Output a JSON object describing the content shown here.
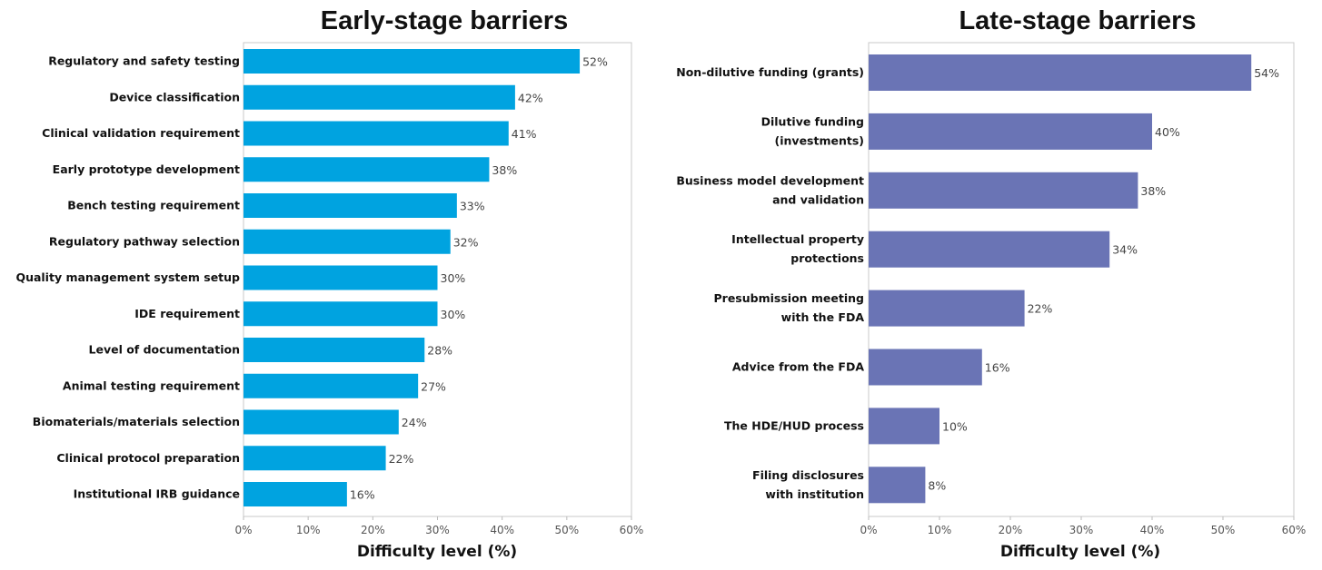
{
  "chart_data": [
    {
      "type": "bar",
      "orientation": "horizontal",
      "title": "Early-stage barriers",
      "xlabel": "Difficulty level (%)",
      "ylabel": "",
      "xlim": [
        0,
        60
      ],
      "ticks": [
        "0%",
        "10%",
        "20%",
        "30%",
        "40%",
        "50%",
        "60%"
      ],
      "grid": false,
      "color": "#00A3E0",
      "categories": [
        "Regulatory and safety testing",
        "Device classification",
        "Clinical validation requirement",
        "Early prototype development",
        "Bench testing requirement",
        "Regulatory pathway selection",
        "Quality management system setup",
        "IDE requirement",
        "Level of documentation",
        "Animal testing requirement",
        "Biomaterials/materials selection",
        "Clinical protocol preparation",
        "Institutional IRB guidance"
      ],
      "values": [
        52,
        42,
        41,
        38,
        33,
        32,
        30,
        30,
        28,
        27,
        24,
        22,
        16
      ],
      "data_labels": [
        "52%",
        "42%",
        "41%",
        "38%",
        "33%",
        "32%",
        "30%",
        "30%",
        "28%",
        "27%",
        "24%",
        "22%",
        "16%"
      ]
    },
    {
      "type": "bar",
      "orientation": "horizontal",
      "title": "Late-stage barriers",
      "xlabel": "Difficulty level (%)",
      "ylabel": "",
      "xlim": [
        0,
        60
      ],
      "ticks": [
        "0%",
        "10%",
        "20%",
        "30%",
        "40%",
        "50%",
        "60%"
      ],
      "grid": false,
      "color": "#6A74B5",
      "categories": [
        [
          "Non-dilutive funding (grants)"
        ],
        [
          "Dilutive funding",
          "(investments)"
        ],
        [
          "Business model development",
          "and validation"
        ],
        [
          "Intellectual property",
          "protections"
        ],
        [
          "Presubmission meeting",
          "with the FDA"
        ],
        [
          "Advice from the FDA"
        ],
        [
          "The HDE/HUD process"
        ],
        [
          "Filing disclosures",
          "with institution"
        ]
      ],
      "values": [
        54,
        40,
        38,
        34,
        22,
        16,
        10,
        8
      ],
      "data_labels": [
        "54%",
        "40%",
        "38%",
        "34%",
        "22%",
        "16%",
        "10%",
        "8%"
      ]
    }
  ]
}
